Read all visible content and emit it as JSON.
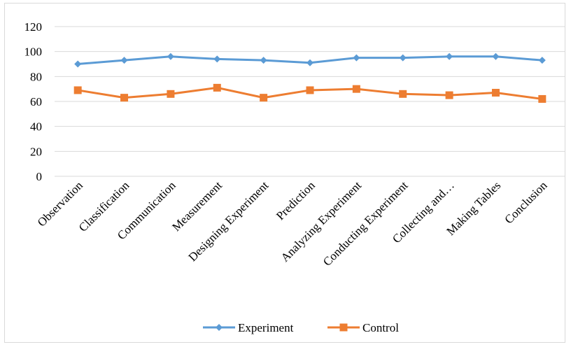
{
  "chart_data": {
    "type": "line",
    "categories": [
      "Observation",
      "Classification",
      "Communication",
      "Measurement",
      "Designing Experiment",
      "Prediction",
      "Analyzing Experiment",
      "Conducting Experiment",
      "Collecting and…",
      "Making Tables",
      "Conclusion"
    ],
    "series": [
      {
        "name": "Experiment",
        "color": "#5b9bd5",
        "marker": "diamond",
        "values": [
          90,
          93,
          96,
          94,
          93,
          91,
          95,
          95,
          96,
          96,
          93
        ]
      },
      {
        "name": "Control",
        "color": "#ed7d31",
        "marker": "square",
        "values": [
          69,
          63,
          66,
          71,
          63,
          69,
          70,
          66,
          65,
          67,
          62
        ]
      }
    ],
    "ylim": [
      0,
      120
    ],
    "yticks": [
      0,
      20,
      40,
      60,
      80,
      100,
      120
    ],
    "grid": true,
    "legend_position": "bottom"
  }
}
